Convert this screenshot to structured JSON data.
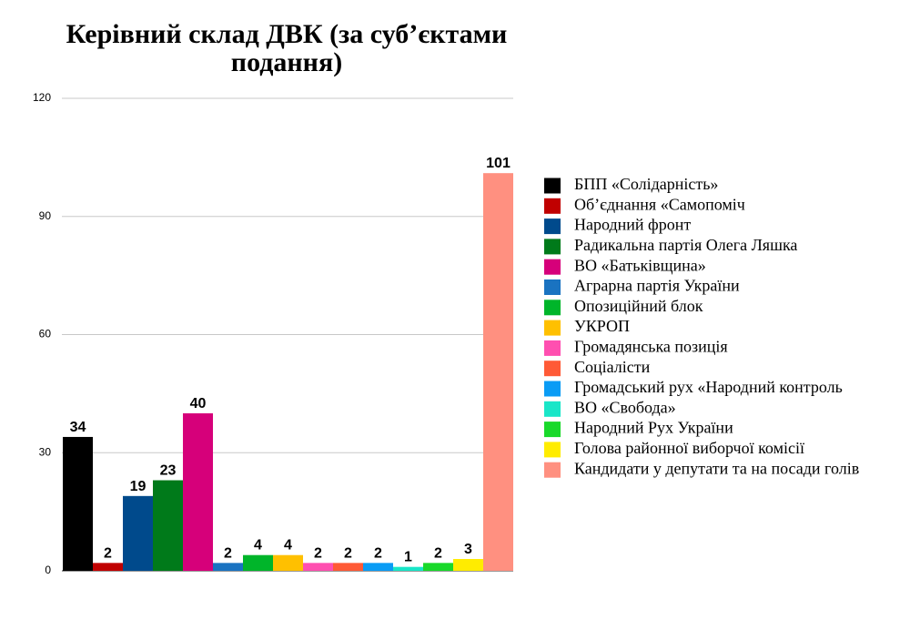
{
  "chart_data": {
    "type": "bar",
    "title": "Керівний склад ДВК (за суб’єктами подання)",
    "ylim": [
      0,
      120
    ],
    "yticks": [
      0,
      30,
      60,
      90,
      120
    ],
    "grid": true,
    "legend": "right",
    "series": [
      {
        "name": "БПП «Солідарність»",
        "color": "#000000",
        "values": [
          34
        ]
      },
      {
        "name": "Об’єднання «Самопоміч",
        "color": "#c00000",
        "values": [
          2
        ]
      },
      {
        "name": "Народний фронт",
        "color": "#004a8c",
        "values": [
          19
        ]
      },
      {
        "name": "Радикальна партія Олега Ляшка",
        "color": "#007a1a",
        "values": [
          23
        ]
      },
      {
        "name": "ВО «Батьківщина»",
        "color": "#d6007a",
        "values": [
          40
        ]
      },
      {
        "name": "Аграрна партія України",
        "color": "#1a73c1",
        "values": [
          2
        ]
      },
      {
        "name": "Опозиційний блок",
        "color": "#00b52a",
        "values": [
          4
        ]
      },
      {
        "name": "УКРОП",
        "color": "#ffc000",
        "values": [
          4
        ]
      },
      {
        "name": "Громадянська позиція",
        "color": "#ff4fb0",
        "values": [
          2
        ]
      },
      {
        "name": "Соціалісти",
        "color": "#ff5a36",
        "values": [
          2
        ]
      },
      {
        "name": "Громадський рух «Народний контроль",
        "color": "#0a9cf5",
        "values": [
          2
        ]
      },
      {
        "name": "ВО «Свобода»",
        "color": "#19e6c8",
        "values": [
          1
        ]
      },
      {
        "name": "Народний Рух України",
        "color": "#19d92a",
        "values": [
          2
        ]
      },
      {
        "name": "Голова районної виборчої комісії",
        "color": "#ffec00",
        "values": [
          3
        ]
      },
      {
        "name": "Кандидати у депутати та на посади голів",
        "color": "#ff9080",
        "values": [
          101
        ]
      }
    ]
  }
}
